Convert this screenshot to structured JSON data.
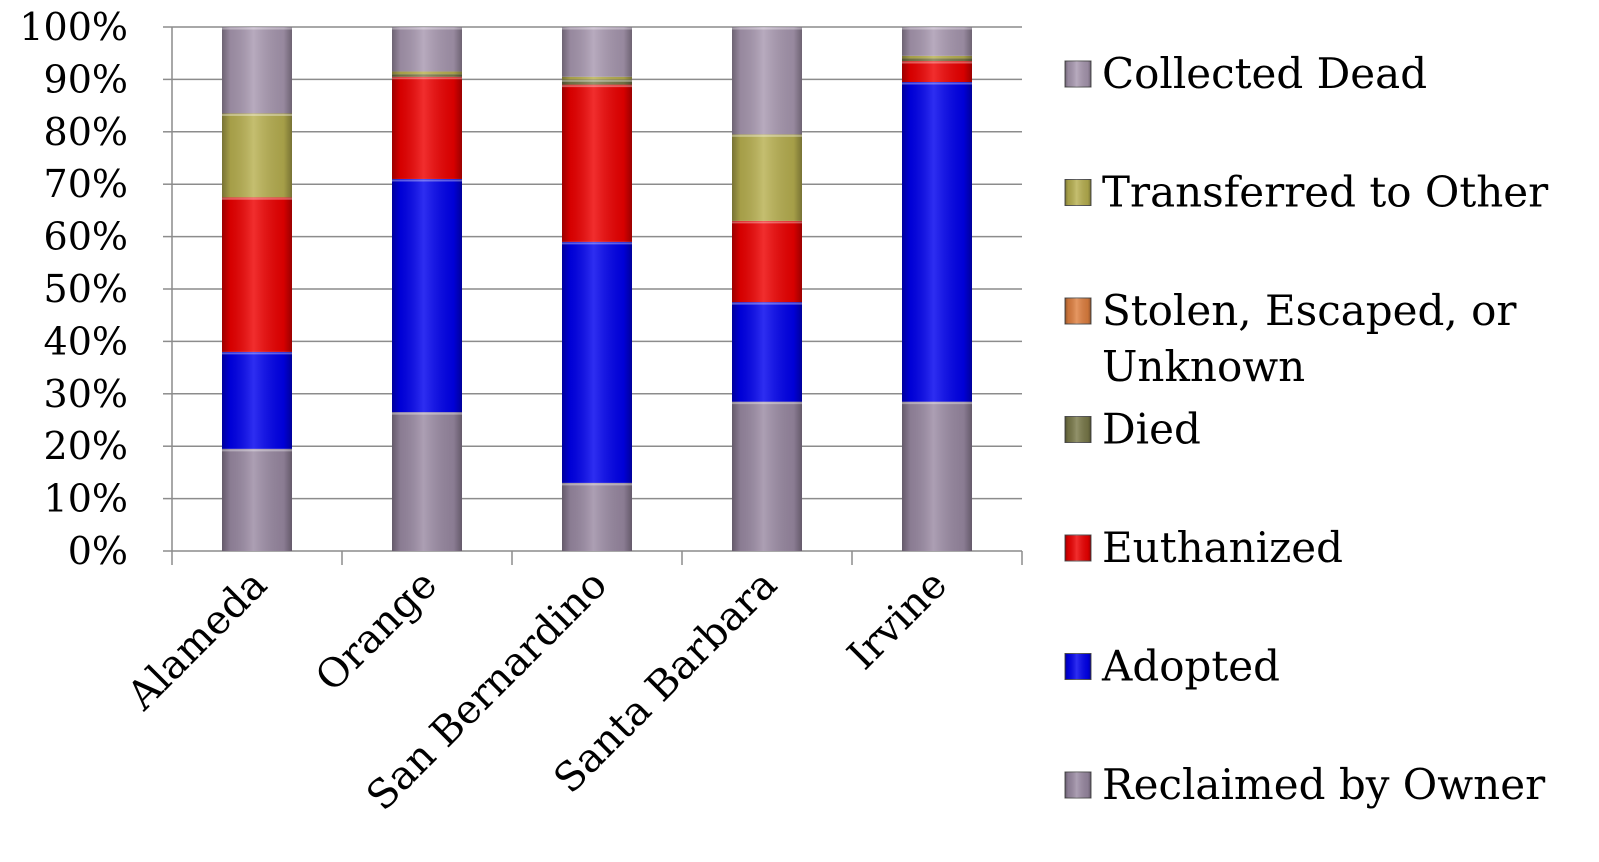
{
  "chart_data": {
    "type": "bar",
    "stacked": true,
    "percent_stacked": true,
    "categories": [
      "Alameda",
      "Orange",
      "San Bernardino",
      "Santa Barbara",
      "Irvine"
    ],
    "ylim": [
      0,
      100
    ],
    "yticks": [
      "0%",
      "10%",
      "20%",
      "30%",
      "40%",
      "50%",
      "60%",
      "70%",
      "80%",
      "90%",
      "100%"
    ],
    "grid": true,
    "legend_position": "right",
    "series": [
      {
        "name": "Reclaimed by Owner",
        "color": "#9a8aa3",
        "values": [
          19.5,
          26.5,
          13,
          28.5,
          28.5
        ]
      },
      {
        "name": "Adopted",
        "color": "#0000ee",
        "values": [
          18.5,
          44.5,
          46,
          19,
          61
        ]
      },
      {
        "name": "Euthanized",
        "color": "#ee0000",
        "values": [
          29.5,
          19.5,
          30,
          15.5,
          4
        ]
      },
      {
        "name": "Died",
        "color": "#7a7a4a",
        "values": [
          0,
          0.5,
          1,
          0,
          0.5
        ]
      },
      {
        "name": "Stolen, Escaped, or Unknown",
        "color": "#e08040",
        "values": [
          0,
          0,
          0,
          0,
          0
        ]
      },
      {
        "name": "Transferred to Other",
        "color": "#b8b050",
        "values": [
          16,
          0.5,
          0.5,
          16.5,
          0.5
        ]
      },
      {
        "name": "Collected Dead",
        "color": "#a898b0",
        "values": [
          16.5,
          8.5,
          9.5,
          20.5,
          5.5
        ]
      }
    ],
    "legend_order": [
      "Collected Dead",
      "Transferred to Other",
      "Stolen, Escaped, or Unknown",
      "Died",
      "Euthanized",
      "Adopted",
      "Reclaimed by Owner"
    ],
    "legend_lines": {
      "Stolen, Escaped, or Unknown": [
        "Stolen, Escaped, or",
        "Unknown"
      ]
    }
  }
}
